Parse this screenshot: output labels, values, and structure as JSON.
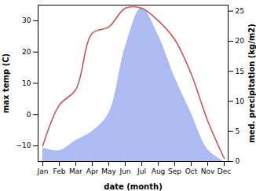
{
  "chart_data": {
    "type": "line",
    "xlabel": "date (month)",
    "categories": [
      "Jan",
      "Feb",
      "Mar",
      "Apr",
      "May",
      "Jun",
      "Jul",
      "Aug",
      "Sep",
      "Oct",
      "Nov",
      "Dec"
    ],
    "series": [
      {
        "name": "max temp (C)",
        "type": "line",
        "color": "#cc5555",
        "values": [
          -10,
          3,
          8,
          26,
          28,
          34,
          34,
          30,
          24,
          13,
          -2,
          -14
        ]
      },
      {
        "name": "med. precipitation (kg/m2)",
        "type": "area",
        "axis": "y2",
        "color": "#aebbf2",
        "values": [
          2.3,
          1.8,
          3.5,
          5,
          8,
          19,
          25.5,
          21,
          14,
          8,
          2,
          0
        ]
      }
    ],
    "ylim": [
      -15,
      35
    ],
    "yticks": [
      -10,
      0,
      10,
      20,
      30
    ],
    "y2lim": [
      0,
      26
    ],
    "y2ticks": [
      0,
      5,
      10,
      15,
      20,
      25
    ]
  }
}
